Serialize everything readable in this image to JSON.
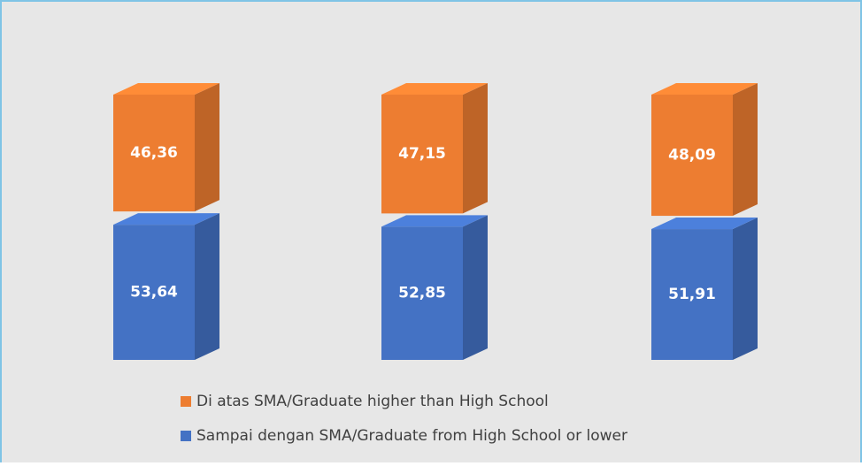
{
  "chart_data": {
    "type": "bar3d_stacked",
    "categories": [
      null,
      null,
      null
    ],
    "series": [
      {
        "name": "Sampai dengan SMA/Graduate from High School or lower",
        "color": "#4472c4",
        "values": [
          53.64,
          52.85,
          51.91
        ],
        "value_labels": [
          "53,64",
          "52,85",
          "51,91"
        ]
      },
      {
        "name": "Di atas SMA/Graduate higher than High School",
        "color": "#ed7d31",
        "values": [
          46.36,
          47.15,
          48.09
        ],
        "value_labels": [
          "46,36",
          "47,15",
          "48,09"
        ]
      }
    ]
  }
}
